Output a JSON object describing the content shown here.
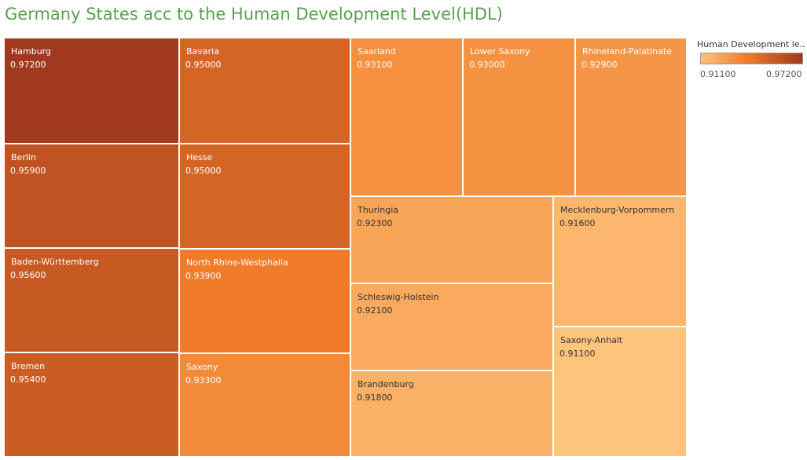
{
  "title": "Germany States acc to the Human Development Level(HDL)",
  "legend": {
    "title": "Human Development le..",
    "min_label": "0.91100",
    "max_label": "0.97200",
    "color_low": "#fdc47e",
    "color_high": "#a0391e"
  },
  "chart_data": {
    "type": "treemap",
    "title": "Germany States acc to the Human Development Level(HDL)",
    "color_range": [
      0.911,
      0.972
    ],
    "items": [
      {
        "label": "Hamburg",
        "value": 0.972,
        "value_label": "0.97200"
      },
      {
        "label": "Berlin",
        "value": 0.959,
        "value_label": "0.95900"
      },
      {
        "label": "Baden-Württemberg",
        "value": 0.956,
        "value_label": "0.95600"
      },
      {
        "label": "Bremen",
        "value": 0.954,
        "value_label": "0.95400"
      },
      {
        "label": "Bavaria",
        "value": 0.95,
        "value_label": "0.95000"
      },
      {
        "label": "Hesse",
        "value": 0.95,
        "value_label": "0.95000"
      },
      {
        "label": "North Rhine-Westphalia",
        "value": 0.939,
        "value_label": "0.93900"
      },
      {
        "label": "Saxony",
        "value": 0.933,
        "value_label": "0.93300"
      },
      {
        "label": "Saarland",
        "value": 0.931,
        "value_label": "0.93100"
      },
      {
        "label": "Lower Saxony",
        "value": 0.93,
        "value_label": "0.93000"
      },
      {
        "label": "Rhineland-Palatinate",
        "value": 0.929,
        "value_label": "0.92900"
      },
      {
        "label": "Thuringia",
        "value": 0.923,
        "value_label": "0.92300"
      },
      {
        "label": "Schleswig-Holstein",
        "value": 0.921,
        "value_label": "0.92100"
      },
      {
        "label": "Brandenburg",
        "value": 0.918,
        "value_label": "0.91800"
      },
      {
        "label": "Mecklenburg-Vorpommern",
        "value": 0.916,
        "value_label": "0.91600"
      },
      {
        "label": "Saxony-Anhalt",
        "value": 0.911,
        "value_label": "0.91100"
      }
    ]
  }
}
